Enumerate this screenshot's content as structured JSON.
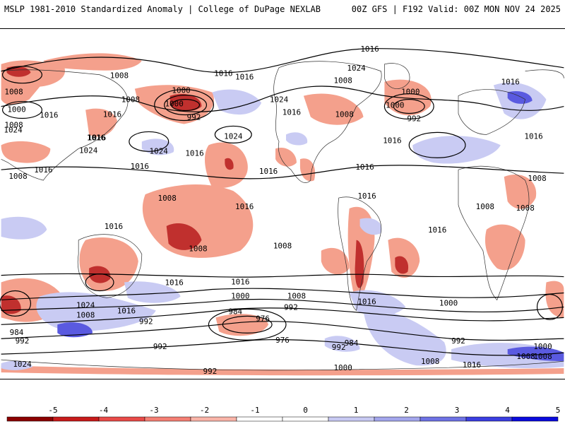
{
  "header": {
    "left_title": "MSLP 1981-2010 Standardized Anomaly | College of DuPage NEXLAB",
    "right_title": "00Z GFS | F192 Valid: 00Z MON NOV 24 2025"
  },
  "map": {
    "isobar_labels": [
      "1016",
      "1008",
      "1008",
      "1016",
      "1008",
      "1000",
      "1008",
      "1016",
      "1024",
      "1000",
      "1016",
      "1008",
      "1000",
      "1016",
      "1016",
      "1024",
      "1016",
      "1000",
      "992",
      "1008",
      "1000",
      "1024",
      "1024",
      "1016",
      "1016",
      "1024",
      "1016",
      "992",
      "1016",
      "1016",
      "1016",
      "1008",
      "1024",
      "1016",
      "1016",
      "1016",
      "1008",
      "1016",
      "1008",
      "1008",
      "1008",
      "1016",
      "1016",
      "1008",
      "1008",
      "1016",
      "1016",
      "1016",
      "1000",
      "1008",
      "992",
      "1000",
      "984",
      "976",
      "992",
      "992",
      "976",
      "992",
      "984",
      "984",
      "992",
      "992",
      "1024",
      "992",
      "1000",
      "1008",
      "1016",
      "1016",
      "1024",
      "1000",
      "1008",
      "1016",
      "1008",
      "1008"
    ],
    "colors": {
      "strong_negative": "#c0302e",
      "negative": "#f4a08c",
      "positive": "#c9cbf3",
      "strong_positive": "#5a5ae0",
      "isobar": "#000000",
      "coast": "#303030"
    }
  },
  "colorbar": {
    "ticks": [
      "-5",
      "-4",
      "-3",
      "-2",
      "-1",
      "0",
      "1",
      "2",
      "3",
      "4",
      "5"
    ],
    "colors": [
      "#8b0000",
      "#c71a1a",
      "#e84a48",
      "#f47f74",
      "#f9b4a8",
      "#ffffff",
      "#ffffff",
      "#c7c9f2",
      "#a3a6ec",
      "#6e72e4",
      "#3b3ee0",
      "#0a0adc"
    ]
  }
}
